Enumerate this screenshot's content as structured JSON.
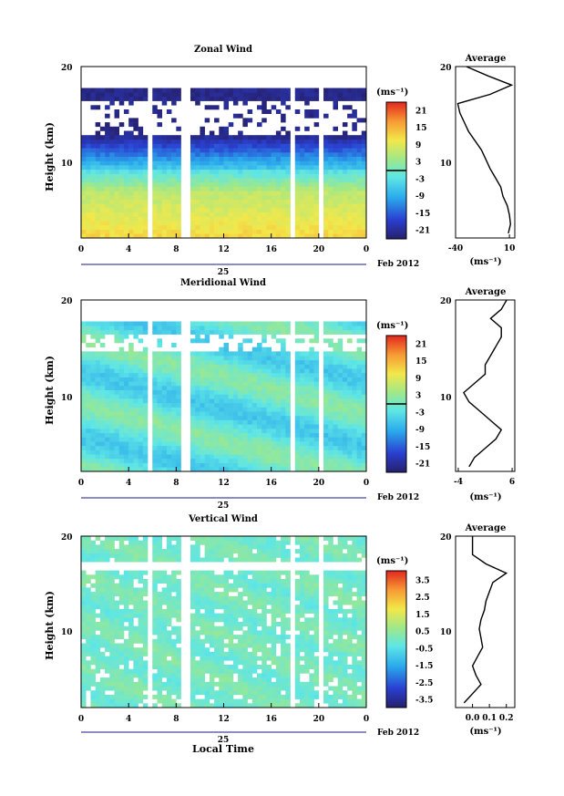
{
  "chart_data": [
    {
      "type": "heatmap",
      "title": "Zonal Wind",
      "ylabel": "Height (km)",
      "x_ticks": [
        "0",
        "4",
        "8",
        "12",
        "16",
        "20",
        "0"
      ],
      "xlim": [
        0,
        24
      ],
      "y_ticks": [
        "20",
        "10"
      ],
      "ylim": [
        1.5,
        20
      ],
      "date_label": "25",
      "date_suffix": "Feb 2012",
      "colorbar": {
        "unit": "(ms⁻¹)",
        "tick_labels": [
          "21",
          "15",
          "9",
          "3",
          "-3",
          "-9",
          "-15",
          "-21"
        ],
        "range": [
          -24,
          24
        ],
        "zero_line": true
      },
      "profile_title": "Average",
      "profile_unit": "(ms⁻¹)",
      "profile_x_ticks": [
        "-40",
        "10"
      ],
      "profile_xlim": [
        -40,
        15
      ],
      "profile": {
        "height": [
          2,
          3,
          4,
          5,
          6,
          7,
          8,
          9,
          10,
          11,
          12,
          13,
          14,
          15,
          16,
          17,
          18,
          19,
          20
        ],
        "value": [
          9,
          11,
          10,
          8,
          4,
          2,
          -3,
          -8,
          -12,
          -16,
          -22,
          -28,
          -32,
          -36,
          -38,
          -8,
          12,
          -10,
          -30
        ]
      },
      "gaps_hours": [
        [
          5.6,
          6.0
        ],
        [
          8.6,
          9.0
        ],
        [
          17.5,
          17.9
        ],
        [
          20.0,
          20.4
        ]
      ]
    },
    {
      "type": "heatmap",
      "title": "Meridional Wind",
      "ylabel": "Height (km)",
      "x_ticks": [
        "0",
        "4",
        "8",
        "12",
        "16",
        "20",
        "0"
      ],
      "xlim": [
        0,
        24
      ],
      "y_ticks": [
        "20",
        "10"
      ],
      "ylim": [
        1.5,
        20
      ],
      "date_label": "25",
      "date_suffix": "Feb 2012",
      "colorbar": {
        "unit": "(ms⁻¹)",
        "tick_labels": [
          "21",
          "15",
          "9",
          "3",
          "-3",
          "-9",
          "-15",
          "-21"
        ],
        "range": [
          -24,
          24
        ],
        "zero_line": true
      },
      "profile_title": "Average",
      "profile_unit": "(ms⁻¹)",
      "profile_x_ticks": [
        "-4",
        "6"
      ],
      "profile_xlim": [
        -4.5,
        6.5
      ],
      "profile": {
        "height": [
          2,
          3,
          4,
          5,
          6,
          7,
          8,
          9,
          10,
          11,
          12,
          13,
          14,
          15,
          16,
          17,
          18,
          19,
          20
        ],
        "value": [
          -2,
          -1,
          1,
          3,
          4,
          2,
          0,
          -2,
          -3,
          -1,
          1,
          1,
          2,
          3,
          4,
          4,
          2,
          4,
          5
        ]
      },
      "gaps_hours": [
        [
          5.6,
          6.0
        ],
        [
          8.6,
          9.0
        ],
        [
          17.5,
          17.9
        ],
        [
          20.0,
          20.4
        ]
      ]
    },
    {
      "type": "heatmap",
      "title": "Vertical Wind",
      "ylabel": "Height (km)",
      "xlabel": "Local Time",
      "x_ticks": [
        "0",
        "4",
        "8",
        "12",
        "16",
        "20",
        "0"
      ],
      "xlim": [
        0,
        24
      ],
      "y_ticks": [
        "20",
        "10"
      ],
      "ylim": [
        1.5,
        20
      ],
      "date_label": "25",
      "date_suffix": "Feb 2012",
      "colorbar": {
        "unit": "(ms⁻¹)",
        "tick_labels": [
          "3.5",
          "2.5",
          "1.5",
          "0.5",
          "-0.5",
          "-1.5",
          "-2.5",
          "-3.5"
        ],
        "range": [
          -4,
          4
        ],
        "zero_line": false
      },
      "profile_title": "Average",
      "profile_unit": "(ms⁻¹)",
      "profile_x_ticks": [
        "0.0",
        "0.1",
        "0.2"
      ],
      "profile_xlim": [
        -0.1,
        0.25
      ],
      "profile": {
        "height": [
          2,
          3,
          4,
          5,
          6,
          7,
          8,
          9,
          10,
          11,
          12,
          13,
          14,
          15,
          16,
          17,
          18,
          19,
          20
        ],
        "value": [
          -0.05,
          0.0,
          0.05,
          0.02,
          0.0,
          0.03,
          0.06,
          0.05,
          0.04,
          0.05,
          0.07,
          0.08,
          0.1,
          0.12,
          0.2,
          0.08,
          0.0,
          0.0,
          0.0
        ]
      },
      "gaps_hours": [
        [
          5.6,
          6.0
        ],
        [
          8.6,
          9.0
        ],
        [
          17.5,
          17.9
        ],
        [
          20.0,
          20.4
        ]
      ]
    }
  ]
}
